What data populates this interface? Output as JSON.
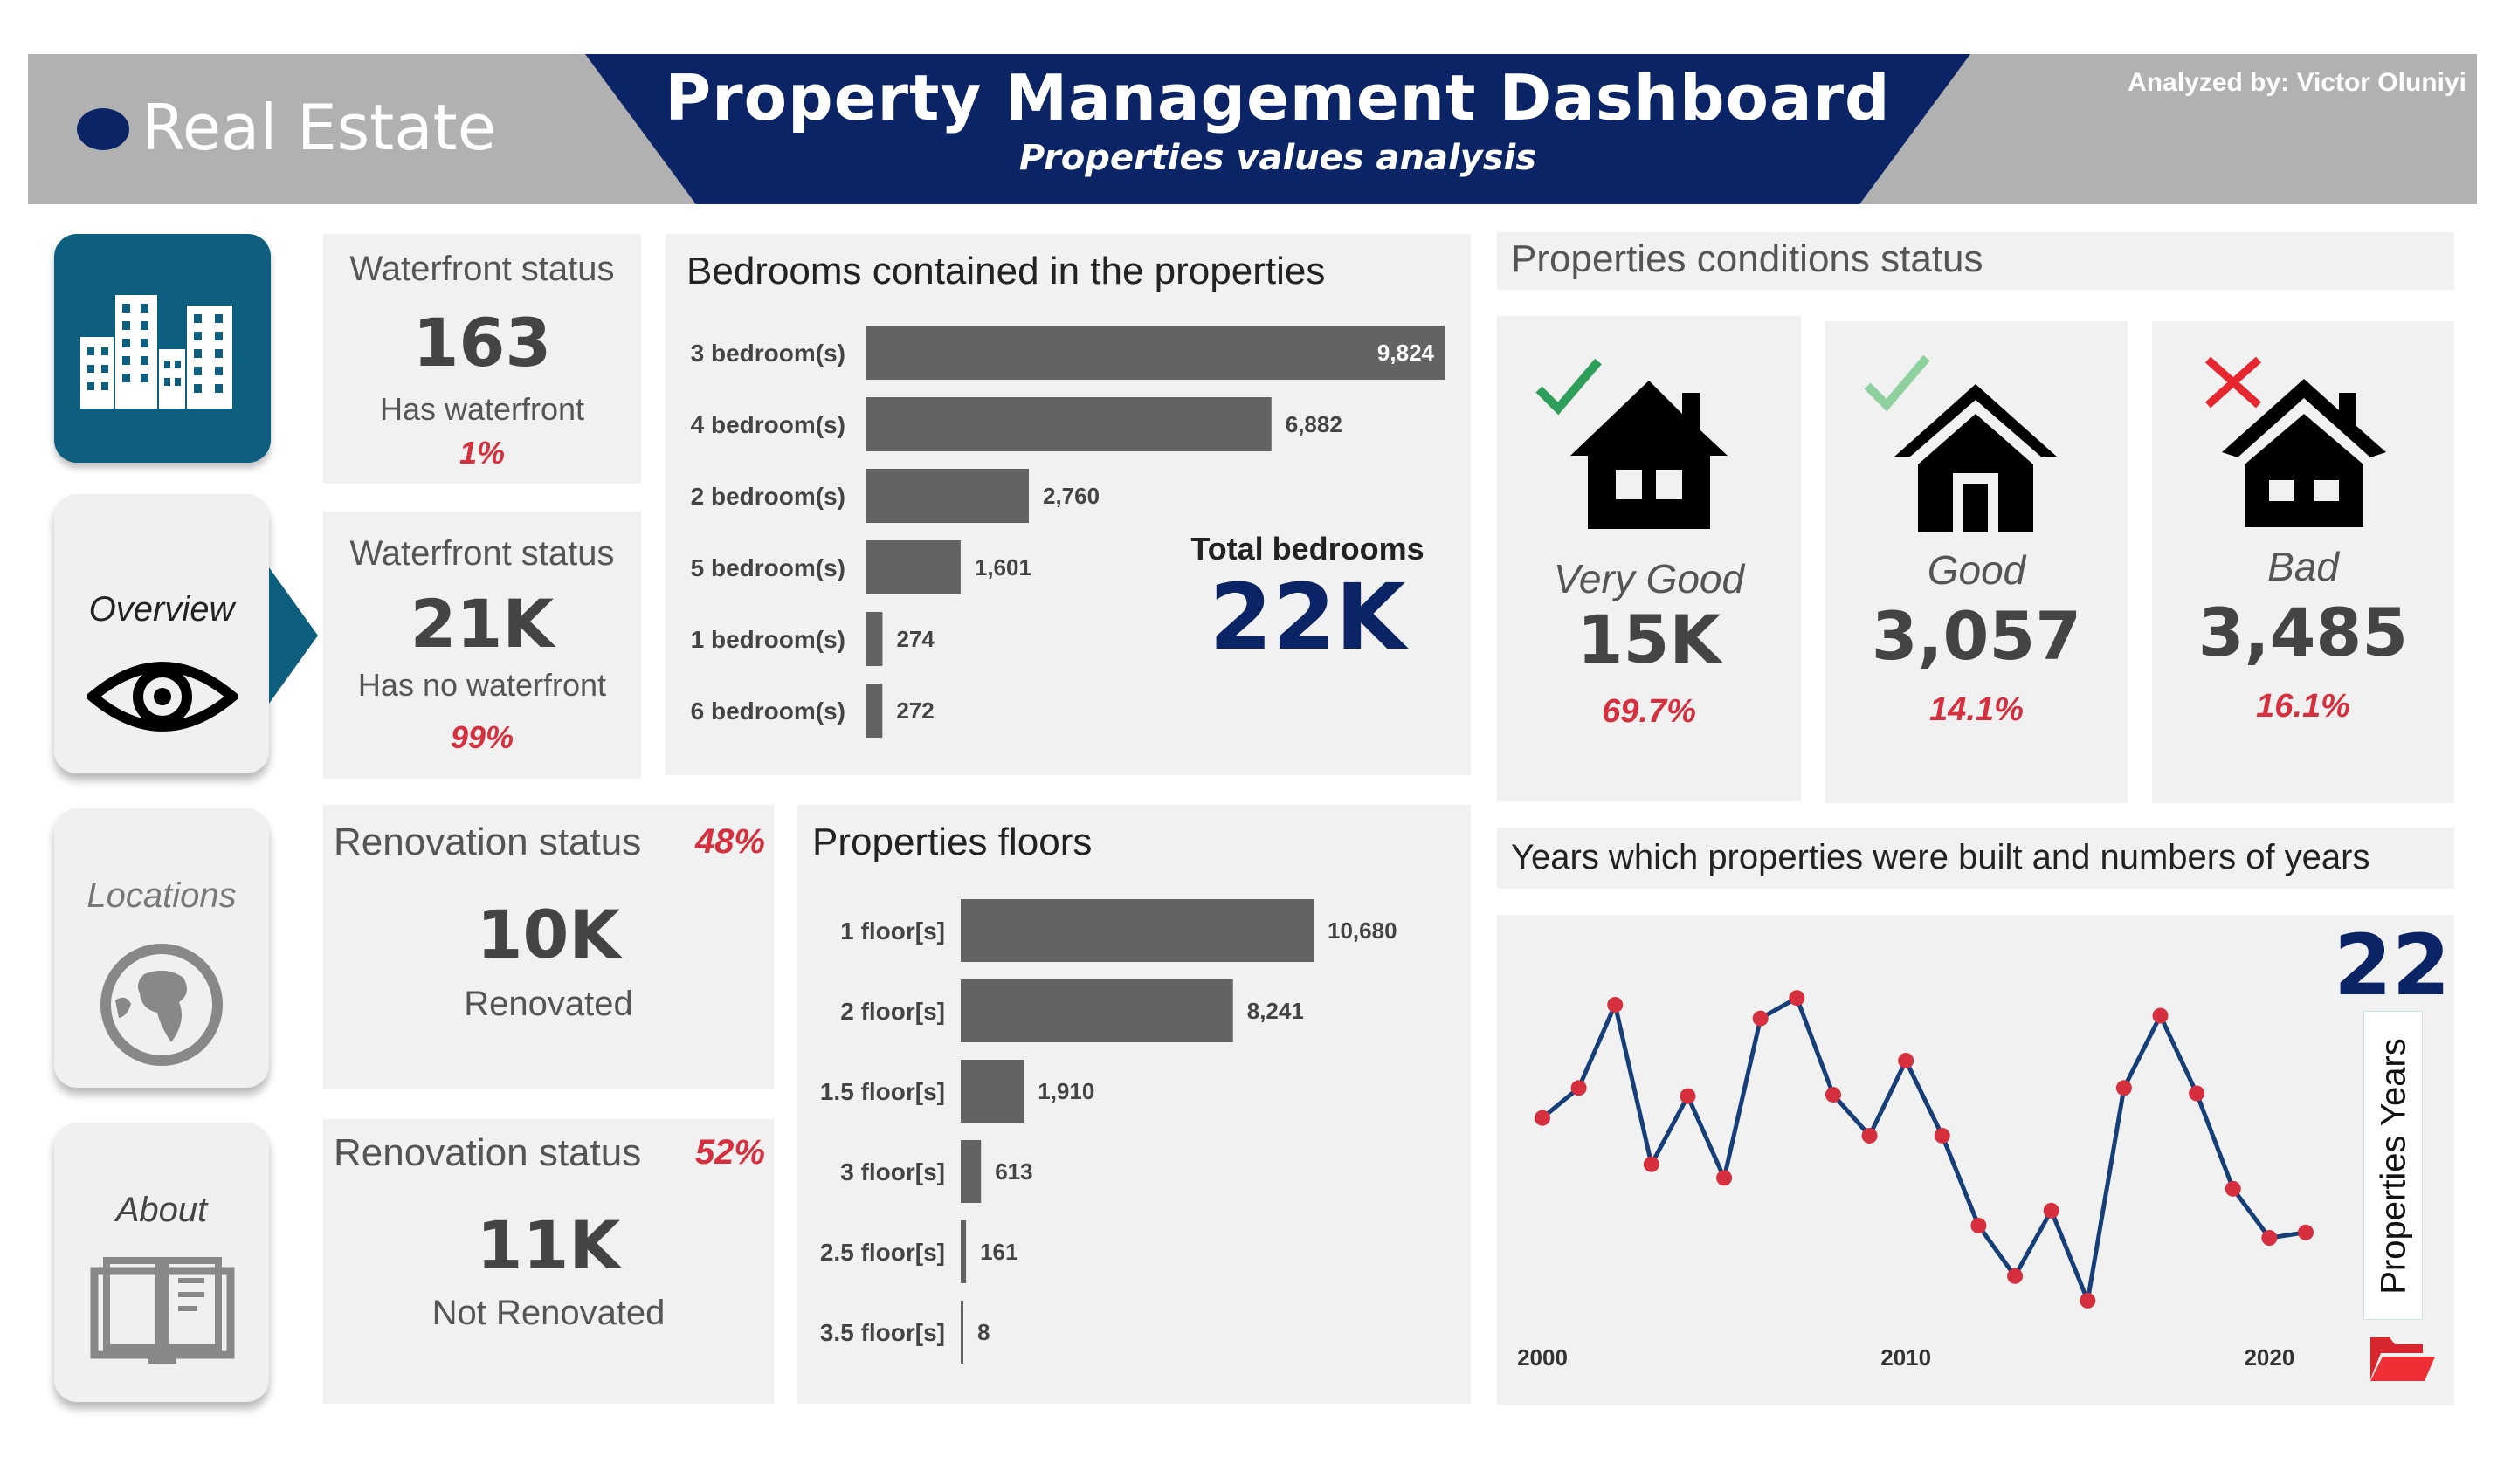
{
  "header": {
    "brand": "Real Estate",
    "title": "Property Management Dashboard",
    "subtitle": "Properties values analysis",
    "analyst": "Analyzed by: Victor Oluniyi"
  },
  "nav": {
    "items": [
      {
        "label": "Overview",
        "icon": "eye-icon"
      },
      {
        "label": "Locations",
        "icon": "globe-icon"
      },
      {
        "label": "About",
        "icon": "book-icon"
      }
    ]
  },
  "waterfront": [
    {
      "title": "Waterfront status",
      "value": "163",
      "label": "Has waterfront",
      "pct": "1%"
    },
    {
      "title": "Waterfront status",
      "value": "21K",
      "label": "Has no waterfront",
      "pct": "99%"
    }
  ],
  "renovation": [
    {
      "title": "Renovation status",
      "value": "10K",
      "label": "Renovated",
      "pct": "48%"
    },
    {
      "title": "Renovation status",
      "value": "11K",
      "label": "Not Renovated",
      "pct": "52%"
    }
  ],
  "bedrooms": {
    "title": "Bedrooms contained in the properties",
    "total_label": "Total bedrooms",
    "total_value": "22K"
  },
  "floors": {
    "title": "Properties floors"
  },
  "conditions": {
    "title": "Properties conditions status",
    "items": [
      {
        "label": "Very Good",
        "value": "15K",
        "pct": "69.7%",
        "mark": "check-icon"
      },
      {
        "label": "Good",
        "value": "3,057",
        "pct": "14.1%",
        "mark": "check-icon"
      },
      {
        "label": "Bad",
        "value": "3,485",
        "pct": "16.1%",
        "mark": "cross-icon"
      }
    ]
  },
  "years": {
    "title": "Years which properties were built and numbers of years",
    "count": "22",
    "count_label": "Properties Years"
  },
  "colors": {
    "navy": "#0a2466",
    "bar": "#636363",
    "red": "#d6303f",
    "teal": "#0e5e80",
    "line": "#163f7a",
    "check": "#2e9e5b"
  },
  "chart_data": [
    {
      "type": "bar",
      "orientation": "horizontal",
      "title": "Bedrooms contained in the properties",
      "categories": [
        "3 bedroom(s)",
        "4 bedroom(s)",
        "2 bedroom(s)",
        "5 bedroom(s)",
        "1 bedroom(s)",
        "6 bedroom(s)"
      ],
      "values": [
        9824,
        6882,
        2760,
        1601,
        274,
        272
      ],
      "value_labels": [
        "9,824",
        "6,882",
        "2,760",
        "1,601",
        "274",
        "272"
      ]
    },
    {
      "type": "bar",
      "orientation": "horizontal",
      "title": "Properties floors",
      "categories": [
        "1 floor[s]",
        "2 floor[s]",
        "1.5 floor[s]",
        "3 floor[s]",
        "2.5 floor[s]",
        "3.5 floor[s]"
      ],
      "values": [
        10680,
        8241,
        1910,
        613,
        161,
        8
      ],
      "value_labels": [
        "10,680",
        "8,241",
        "1,910",
        "613",
        "161",
        "8"
      ]
    },
    {
      "type": "line",
      "title": "Years which properties were built and numbers of years",
      "x": [
        2000,
        2001,
        2002,
        2003,
        2004,
        2005,
        2006,
        2007,
        2008,
        2009,
        2010,
        2011,
        2012,
        2013,
        2014,
        2015,
        2016,
        2017,
        2018,
        2019,
        2020,
        2021
      ],
      "y": [
        452,
        474,
        535,
        418,
        468,
        408,
        525,
        540,
        469,
        439,
        494,
        439,
        373,
        336,
        384,
        318,
        474,
        527,
        470,
        400,
        364,
        368
      ],
      "xticks": [
        "2000",
        "2010",
        "2020"
      ],
      "grid": false
    }
  ]
}
